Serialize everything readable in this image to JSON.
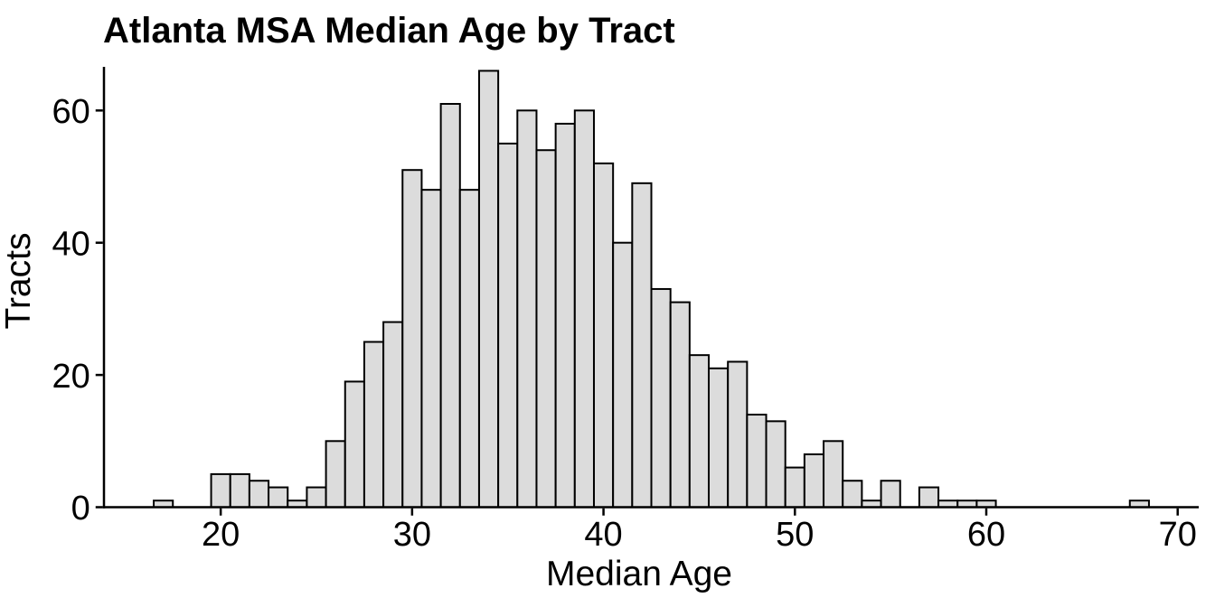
{
  "page": {
    "background": "#FFFFFF"
  },
  "chart_data": {
    "type": "bar",
    "subtype": "histogram",
    "title": "Atlanta MSA Median Age by Tract",
    "xlabel": "Median Age",
    "ylabel": "Tracts",
    "bin_width": 1,
    "bin_centers": [
      17,
      20,
      21,
      22,
      23,
      24,
      25,
      26,
      27,
      28,
      29,
      30,
      31,
      32,
      33,
      34,
      35,
      36,
      37,
      38,
      39,
      40,
      41,
      42,
      43,
      44,
      45,
      46,
      47,
      48,
      49,
      50,
      51,
      52,
      53,
      54,
      55,
      57,
      58,
      59,
      60,
      68
    ],
    "counts": [
      1,
      5,
      5,
      4,
      3,
      1,
      3,
      10,
      19,
      25,
      28,
      51,
      48,
      61,
      48,
      66,
      55,
      60,
      54,
      58,
      60,
      52,
      40,
      49,
      33,
      31,
      23,
      21,
      22,
      14,
      13,
      6,
      8,
      10,
      4,
      1,
      4,
      3,
      1,
      1,
      1,
      1
    ],
    "x_ticks": [
      20,
      30,
      40,
      50,
      60,
      70
    ],
    "y_ticks": [
      0,
      20,
      40,
      60
    ],
    "xlim": [
      13.9,
      71.1
    ],
    "ylim": [
      0,
      66
    ],
    "grid": false,
    "legend": "none",
    "bar_fill": "#DCDCDC",
    "bar_stroke": "#000000",
    "axis_color": "#000000",
    "text_color": "#000000"
  }
}
